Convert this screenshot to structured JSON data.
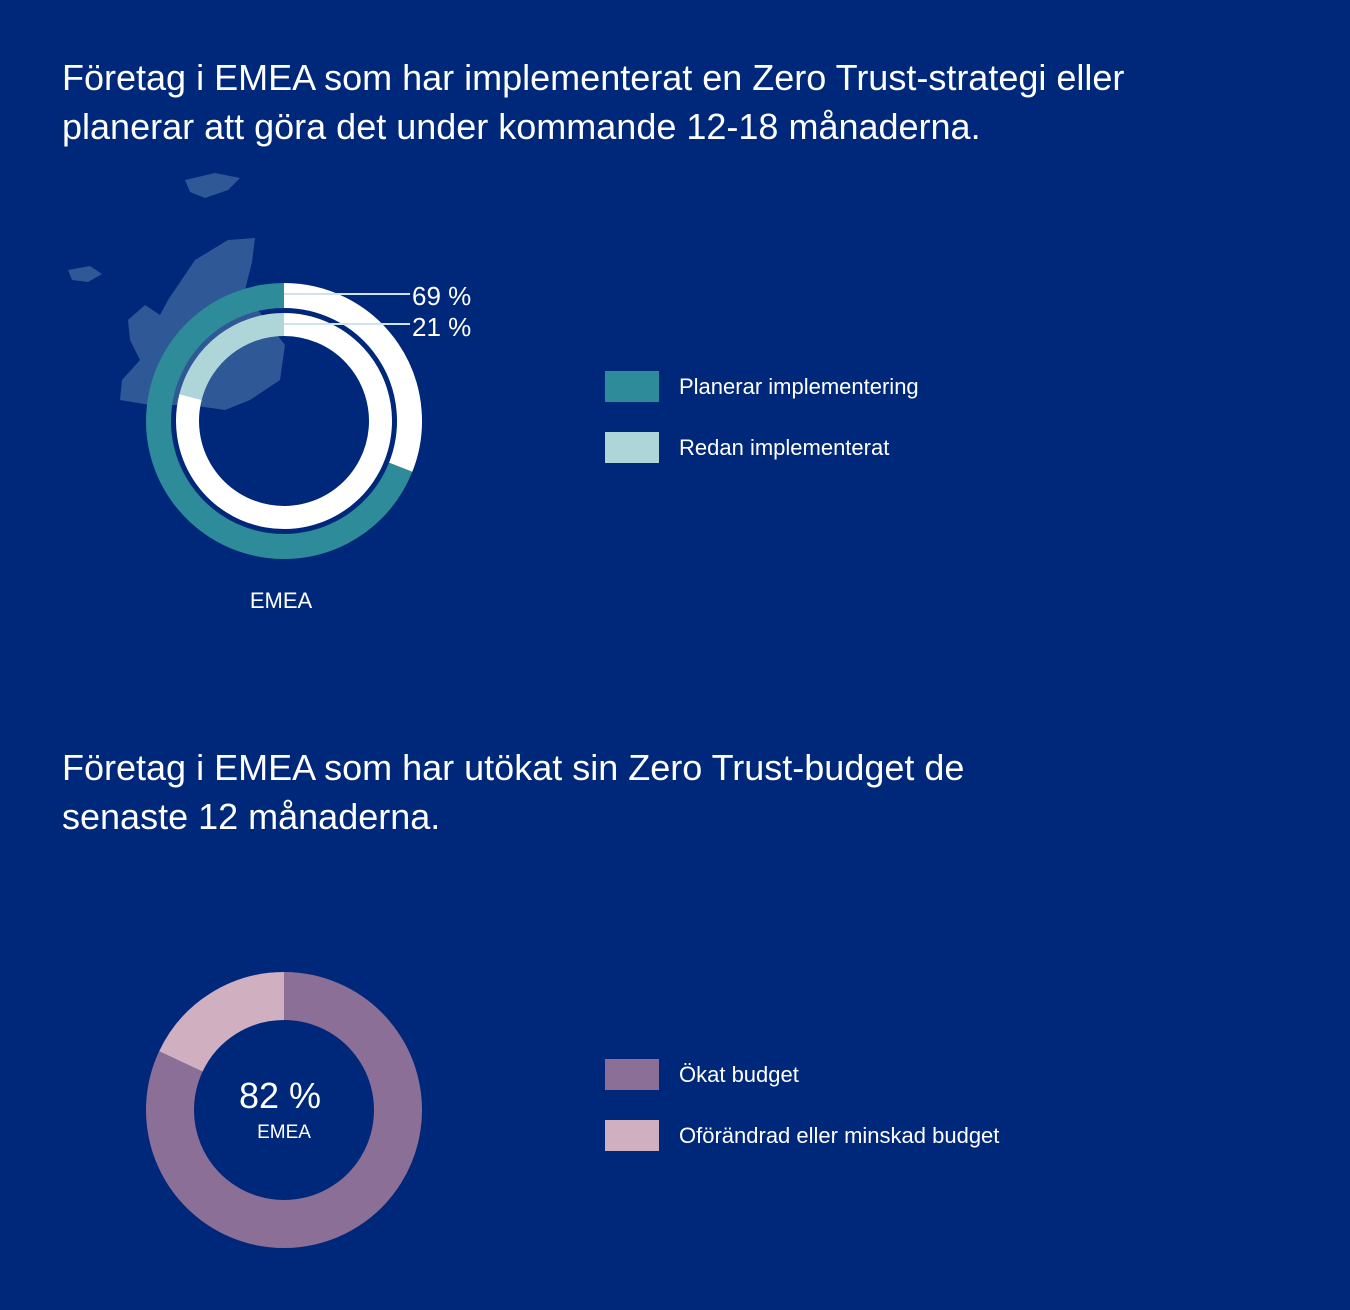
{
  "titles": {
    "chart1": "Företag i EMEA som har implementerat en Zero Trust-strategi eller planerar att göra det under kommande 12-18 månaderna.",
    "chart2": "Företag i EMEA som har utökat sin Zero Trust-budget de senaste 12 månaderna."
  },
  "chart_data": [
    {
      "type": "pie",
      "title": "Företag i EMEA som har implementerat en Zero Trust-strategi eller planerar att göra det under kommande 12-18 månaderna.",
      "region_label": "EMEA",
      "series": [
        {
          "name": "Planerar implementering",
          "value": 69,
          "label": "69 %",
          "color": "#2e8b9a"
        },
        {
          "name": "Redan implementerat",
          "value": 21,
          "label": "21 %",
          "color": "#aed6d8"
        }
      ]
    },
    {
      "type": "pie",
      "title": "Företag i EMEA som har utökat sin Zero Trust-budget de senaste 12 månaderna.",
      "center_value": "82 %",
      "region_label": "EMEA",
      "series": [
        {
          "name": "Ökat budget",
          "value": 82,
          "color": "#8b6f96"
        },
        {
          "name": "Oförändrad eller minskad budget",
          "value": 18,
          "color": "#cfafc0"
        }
      ]
    }
  ]
}
